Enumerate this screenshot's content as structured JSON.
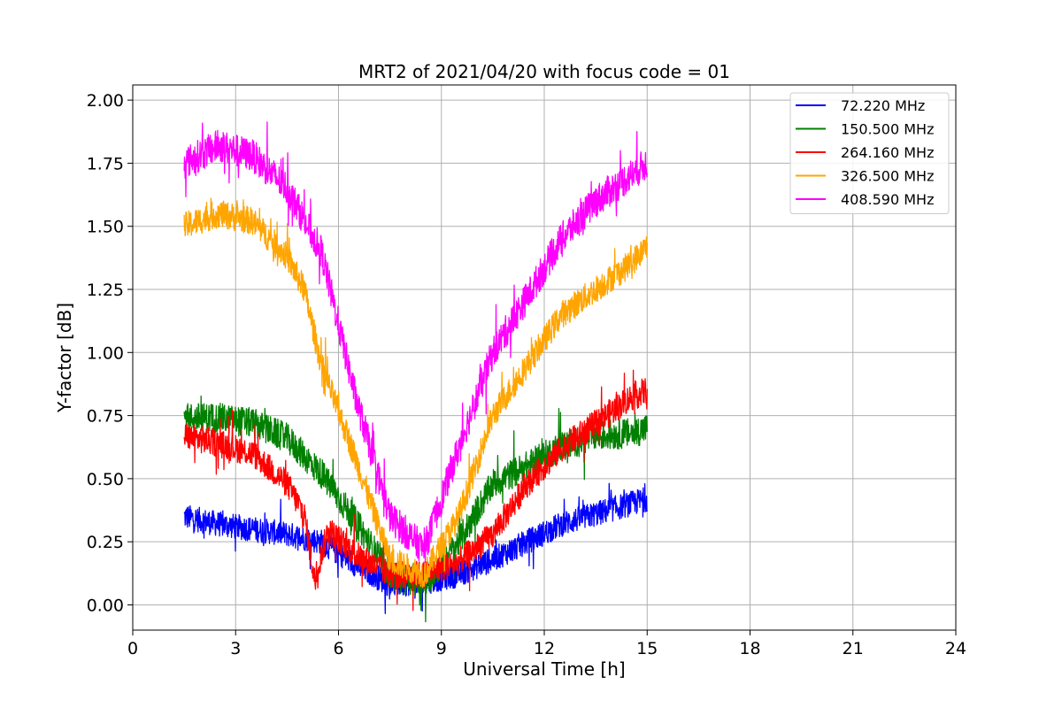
{
  "chart_data": {
    "type": "line",
    "title": "MRT2 of 2021/04/20 with focus code = 01",
    "xlabel": "Universal Time [h]",
    "ylabel": "Y-factor [dB]",
    "xlim": [
      0,
      24
    ],
    "ylim": [
      -0.1,
      2.06
    ],
    "xticks": [
      0,
      3,
      6,
      9,
      12,
      15,
      18,
      21,
      24
    ],
    "xtick_labels": [
      "0",
      "3",
      "6",
      "9",
      "12",
      "15",
      "18",
      "21",
      "24"
    ],
    "yticks": [
      0.0,
      0.25,
      0.5,
      0.75,
      1.0,
      1.25,
      1.5,
      1.75,
      2.0
    ],
    "ytick_labels": [
      "0.00",
      "0.25",
      "0.50",
      "0.75",
      "1.00",
      "1.25",
      "1.50",
      "1.75",
      "2.00"
    ],
    "grid": true,
    "legend_position": "top-right",
    "series": [
      {
        "name": "72.220 MHz",
        "color": "#0000ff",
        "noise": 0.05,
        "points": [
          [
            1.5,
            0.35
          ],
          [
            2.5,
            0.32
          ],
          [
            3.5,
            0.3
          ],
          [
            4.5,
            0.28
          ],
          [
            5.5,
            0.25
          ],
          [
            6.5,
            0.16
          ],
          [
            7.5,
            0.08
          ],
          [
            8.5,
            0.09
          ],
          [
            9.5,
            0.12
          ],
          [
            10.5,
            0.18
          ],
          [
            11.5,
            0.25
          ],
          [
            12.5,
            0.32
          ],
          [
            13.5,
            0.36
          ],
          [
            14.5,
            0.4
          ],
          [
            15.0,
            0.42
          ]
        ]
      },
      {
        "name": "150.500 MHz",
        "color": "#008000",
        "noise": 0.06,
        "points": [
          [
            1.5,
            0.74
          ],
          [
            2.5,
            0.74
          ],
          [
            3.5,
            0.72
          ],
          [
            4.5,
            0.66
          ],
          [
            5.5,
            0.52
          ],
          [
            6.5,
            0.33
          ],
          [
            7.5,
            0.12
          ],
          [
            8.5,
            0.08
          ],
          [
            9.5,
            0.25
          ],
          [
            10.5,
            0.48
          ],
          [
            11.5,
            0.55
          ],
          [
            12.5,
            0.63
          ],
          [
            13.5,
            0.67
          ],
          [
            14.5,
            0.68
          ],
          [
            15.0,
            0.7
          ]
        ]
      },
      {
        "name": "264.160 MHz",
        "color": "#ff0000",
        "noise": 0.055,
        "points": [
          [
            1.5,
            0.67
          ],
          [
            2.5,
            0.64
          ],
          [
            3.5,
            0.6
          ],
          [
            4.5,
            0.48
          ],
          [
            5.0,
            0.36
          ],
          [
            5.3,
            0.1
          ],
          [
            5.7,
            0.3
          ],
          [
            6.5,
            0.2
          ],
          [
            7.5,
            0.12
          ],
          [
            8.5,
            0.12
          ],
          [
            9.5,
            0.17
          ],
          [
            10.5,
            0.28
          ],
          [
            11.5,
            0.48
          ],
          [
            12.5,
            0.62
          ],
          [
            13.5,
            0.72
          ],
          [
            14.5,
            0.82
          ],
          [
            15.0,
            0.85
          ]
        ]
      },
      {
        "name": "326.500 MHz",
        "color": "#ffa500",
        "noise": 0.055,
        "points": [
          [
            1.5,
            1.5
          ],
          [
            2.5,
            1.55
          ],
          [
            3.5,
            1.52
          ],
          [
            4.5,
            1.38
          ],
          [
            5.0,
            1.25
          ],
          [
            5.5,
            0.95
          ],
          [
            6.5,
            0.58
          ],
          [
            7.5,
            0.18
          ],
          [
            8.5,
            0.12
          ],
          [
            9.5,
            0.35
          ],
          [
            10.5,
            0.75
          ],
          [
            11.5,
            0.95
          ],
          [
            12.5,
            1.15
          ],
          [
            13.5,
            1.25
          ],
          [
            14.5,
            1.35
          ],
          [
            15.0,
            1.42
          ]
        ]
      },
      {
        "name": "408.590 MHz",
        "color": "#ff00ff",
        "noise": 0.065,
        "points": [
          [
            1.5,
            1.75
          ],
          [
            2.5,
            1.82
          ],
          [
            3.5,
            1.78
          ],
          [
            4.5,
            1.65
          ],
          [
            5.5,
            1.4
          ],
          [
            6.5,
            0.82
          ],
          [
            7.5,
            0.35
          ],
          [
            8.5,
            0.22
          ],
          [
            9.5,
            0.62
          ],
          [
            10.5,
            1.0
          ],
          [
            11.5,
            1.22
          ],
          [
            12.5,
            1.45
          ],
          [
            13.5,
            1.6
          ],
          [
            14.5,
            1.7
          ],
          [
            15.0,
            1.75
          ]
        ]
      }
    ]
  }
}
